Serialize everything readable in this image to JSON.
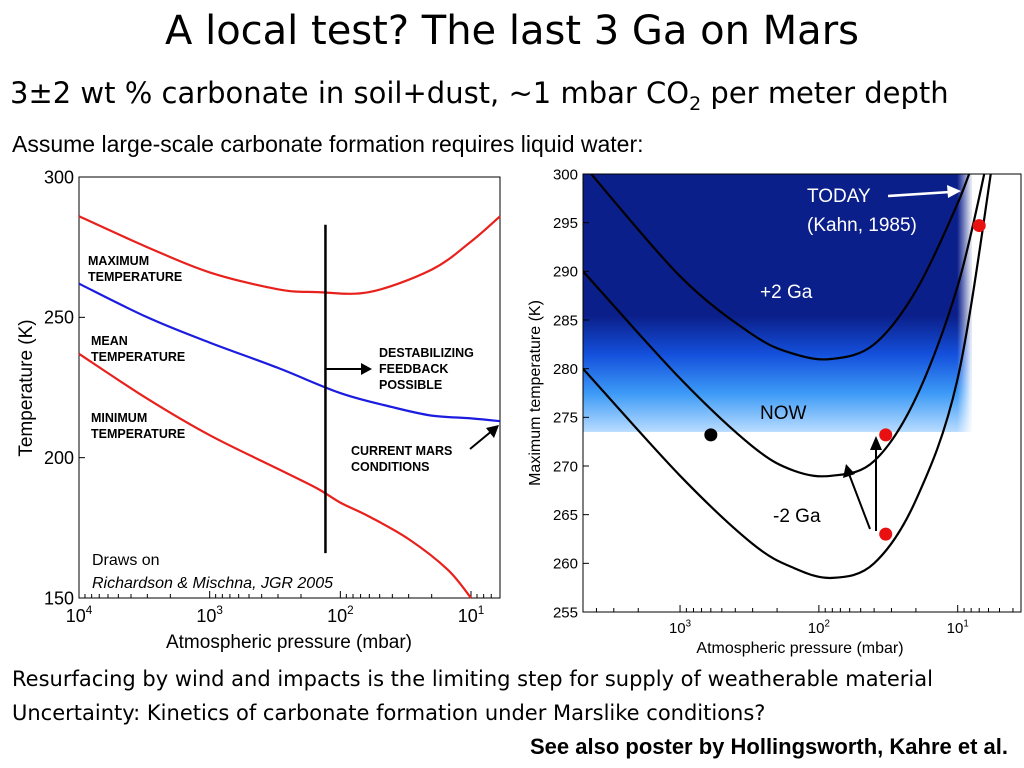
{
  "slide": {
    "title": "A local test? The last 3 Ga on Mars",
    "subtitle_pre": "3±2 wt % carbonate in soil+dust, ~1 mbar CO",
    "subtitle_sub": "2",
    "subtitle_post": " per meter depth",
    "assume": "Assume large-scale carbonate formation requires liquid water:",
    "footer_line1": "Resurfacing by wind and impacts is the limiting step for supply of weatherable material",
    "footer_line2": "Uncertainty: Kinetics of carbonate formation under Marslike conditions?",
    "see_also": "See also poster by Hollingsworth, Kahre et al."
  },
  "chart_data": [
    {
      "type": "line",
      "xlabel": "Atmospheric pressure (mbar)",
      "ylabel": "Temperature (K)",
      "x_scale": "log",
      "x_reversed": true,
      "xlim": [
        10000,
        6
      ],
      "ylim": [
        150,
        300
      ],
      "x_ticks": [
        {
          "base": "10",
          "exp": "4",
          "value": 10000
        },
        {
          "base": "10",
          "exp": "3",
          "value": 1000
        },
        {
          "base": "10",
          "exp": "2",
          "value": 100
        },
        {
          "base": "10",
          "exp": "1",
          "value": 10
        }
      ],
      "y_ticks": [
        "300",
        "250",
        "200",
        "150"
      ],
      "y_tick_values": [
        300,
        250,
        200,
        150
      ],
      "series": [
        {
          "name": "MAXIMUM TEMPERATURE",
          "label_lines": [
            "MAXIMUM",
            "TEMPERATURE"
          ],
          "color": "#e8211c",
          "x": [
            10000,
            3000,
            1000,
            300,
            150,
            60,
            20,
            10,
            6
          ],
          "y": [
            286,
            275,
            266,
            260,
            259,
            259,
            267,
            277,
            286
          ]
        },
        {
          "name": "MEAN TEMPERATURE",
          "label_lines": [
            "MEAN",
            "TEMPERATURE"
          ],
          "color": "#1c1ce0",
          "x": [
            10000,
            3000,
            1000,
            300,
            100,
            40,
            20,
            10,
            6
          ],
          "y": [
            262,
            250,
            241,
            232,
            223,
            218,
            215,
            214,
            213
          ]
        },
        {
          "name": "MINIMUM TEMPERATURE",
          "label_lines": [
            "MINIMUM",
            "TEMPERATURE"
          ],
          "color": "#e8211c",
          "x": [
            10000,
            3000,
            1000,
            300,
            150,
            100,
            60,
            30,
            15,
            10
          ],
          "y": [
            237,
            221,
            208,
            196,
            189,
            184,
            179,
            171,
            160,
            150
          ]
        }
      ],
      "vertical_line_x": 130,
      "vertical_line_ylim": [
        166,
        283
      ],
      "annotations": [
        {
          "lines": [
            "DESTABILIZING",
            "FEEDBACK",
            "POSSIBLE"
          ]
        },
        {
          "lines": [
            "CURRENT MARS",
            "CONDITIONS"
          ]
        }
      ],
      "credit_line1": "Draws on",
      "credit_line2": "Richardson & Mischna, JGR 2005"
    },
    {
      "type": "line",
      "xlabel": "Atmospheric pressure (mbar)",
      "ylabel": "Maximum temperature (K)",
      "x_scale": "log",
      "x_reversed": true,
      "xlim": [
        5000,
        3.5
      ],
      "ylim": [
        255,
        300
      ],
      "x_ticks": [
        {
          "base": "10",
          "exp": "3",
          "value": 1000
        },
        {
          "base": "10",
          "exp": "2",
          "value": 100
        },
        {
          "base": "10",
          "exp": "1",
          "value": 10
        }
      ],
      "y_ticks": [
        "300",
        "295",
        "290",
        "285",
        "280",
        "275",
        "270",
        "265",
        "260",
        "255"
      ],
      "y_tick_values": [
        300,
        295,
        290,
        285,
        280,
        275,
        270,
        265,
        260,
        255
      ],
      "liquid_water_shading": {
        "y_bottom": 273.5,
        "x_right": 8,
        "dark_color": "#0b1f8a",
        "light_color": "#b9dcff"
      },
      "series": [
        {
          "name": "+2 Ga",
          "color": "#000000",
          "x": [
            5000,
            1000,
            300,
            150,
            80,
            40,
            20,
            10,
            7
          ],
          "y": [
            301,
            289.5,
            283.5,
            281.5,
            281,
            282.5,
            288,
            297,
            303
          ]
        },
        {
          "name": "NOW",
          "color": "#000000",
          "x": [
            5000,
            1000,
            300,
            150,
            80,
            40,
            20,
            10,
            6
          ],
          "y": [
            290,
            279,
            272,
            269.5,
            269,
            270.5,
            277,
            288.5,
            302
          ]
        },
        {
          "name": "-2 Ga",
          "color": "#000000",
          "x": [
            5000,
            1000,
            300,
            150,
            80,
            40,
            20,
            10,
            5.5
          ],
          "y": [
            280,
            269,
            262,
            259.5,
            258.5,
            260,
            266.5,
            279,
            302
          ]
        }
      ],
      "points": [
        {
          "x": 600,
          "y": 273.2,
          "color": "#000000"
        },
        {
          "x": 33,
          "y": 273.2,
          "color": "#e81010"
        },
        {
          "x": 33,
          "y": 263,
          "color": "#e81010"
        },
        {
          "x": 7,
          "y": 294.7,
          "color": "#e81010"
        }
      ],
      "labels": {
        "today": "TODAY",
        "kahn": "(Kahn, 1985)",
        "plus2": "+2 Ga",
        "now": "NOW",
        "minus2": "-2 Ga"
      }
    }
  ]
}
